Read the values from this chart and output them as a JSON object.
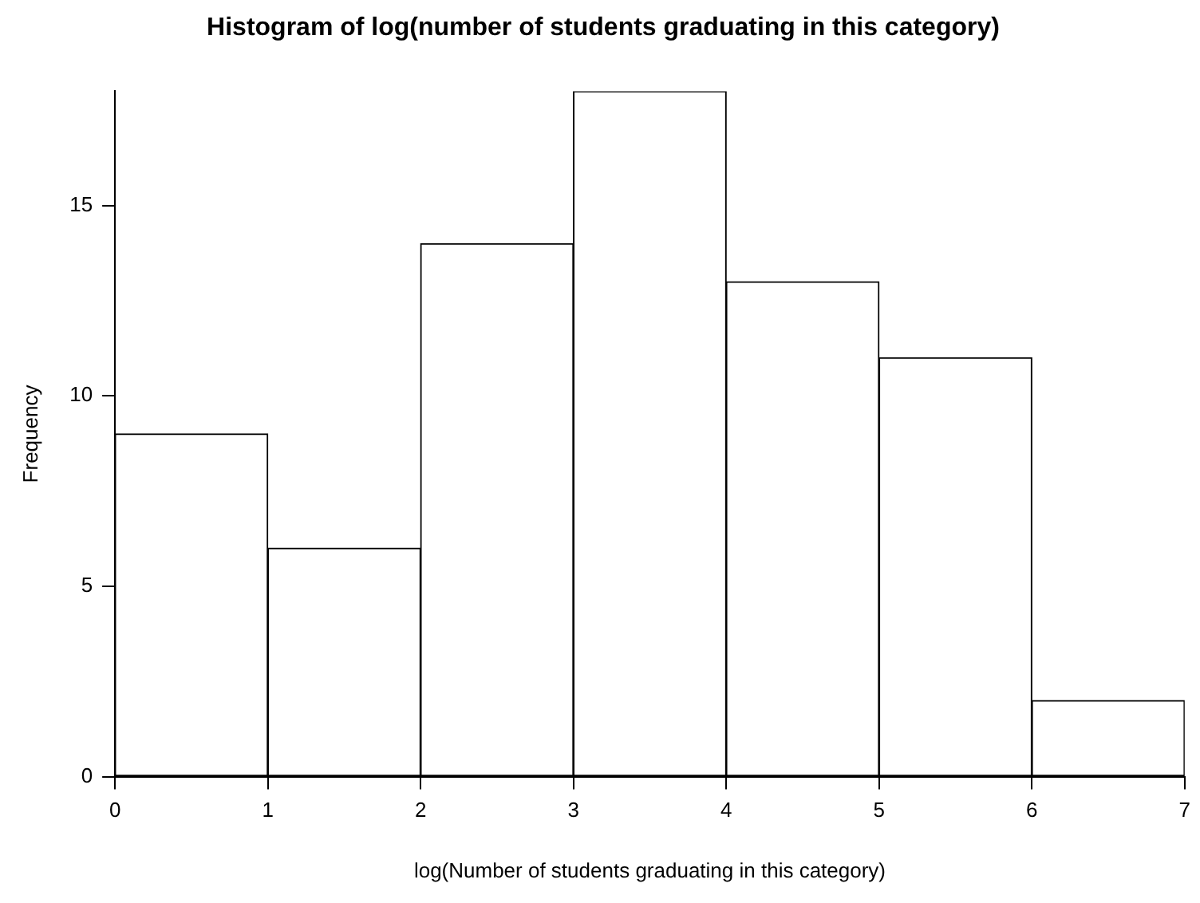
{
  "chart_data": {
    "type": "histogram",
    "title": "Histogram of log(number of students graduating in this category)",
    "xlabel": "log(Number of students graduating in this category)",
    "ylabel": "Frequency",
    "bins": [
      0,
      1,
      2,
      3,
      4,
      5,
      6,
      7
    ],
    "values": [
      9,
      6,
      14,
      18,
      13,
      11,
      2
    ],
    "color": "#ffffff",
    "xlim": [
      0,
      7
    ],
    "xticks": [
      0,
      1,
      2,
      3,
      4,
      5,
      6,
      7
    ],
    "ylim": [
      0,
      18
    ],
    "yticks": [
      0,
      5,
      10,
      15
    ]
  }
}
